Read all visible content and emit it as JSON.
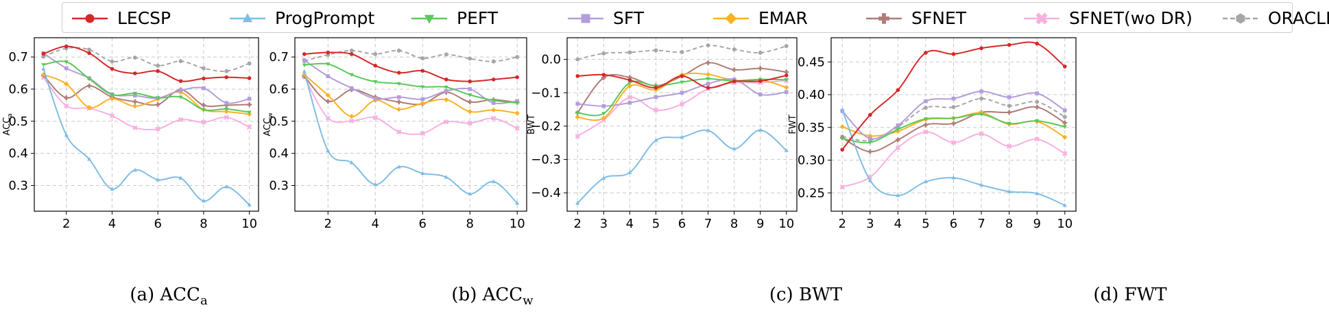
{
  "legend": {
    "items": [
      {
        "name": "LECSP",
        "color": "#d62728",
        "marker": "circle",
        "dash": false
      },
      {
        "name": "ProgPrompt",
        "color": "#7fbde5",
        "marker": "triangle-up",
        "dash": false
      },
      {
        "name": "PEFT",
        "color": "#5ac85a",
        "marker": "triangle-down",
        "dash": false
      },
      {
        "name": "SFT",
        "color": "#b39ddb",
        "marker": "square",
        "dash": false
      },
      {
        "name": "EMAR",
        "color": "#fbb124",
        "marker": "diamond",
        "dash": false
      },
      {
        "name": "SFNET",
        "color": "#b07c75",
        "marker": "plus",
        "dash": false
      },
      {
        "name": "SFNET(wo DR)",
        "color": "#f7b0e0",
        "marker": "x",
        "dash": false
      },
      {
        "name": "ORACLE",
        "color": "#a6a6a6",
        "marker": "hexagon",
        "dash": true
      }
    ]
  },
  "captions": [
    {
      "prefix": "(a) ACC",
      "sub": "a"
    },
    {
      "prefix": "(b) ACC",
      "sub": "w"
    },
    {
      "prefix": "(c) BWT",
      "sub": ""
    },
    {
      "prefix": "(d) FWT",
      "sub": ""
    }
  ],
  "chart_data": [
    {
      "type": "line",
      "title": "(a) ACC_a",
      "xlabel": "",
      "ylabel": "ACC_a",
      "x": [
        1,
        2,
        3,
        4,
        5,
        6,
        7,
        8,
        9,
        10
      ],
      "xticks": [
        2,
        4,
        6,
        8,
        10
      ],
      "xlim": [
        0.6,
        10.4
      ],
      "yticks": [
        0.3,
        0.4,
        0.5,
        0.6,
        0.7
      ],
      "ylim": [
        0.22,
        0.76
      ],
      "series": [
        {
          "name": "LECSP",
          "values": [
            0.71,
            0.733,
            0.712,
            0.663,
            0.649,
            0.656,
            0.625,
            0.633,
            0.637,
            0.634
          ]
        },
        {
          "name": "ProgPrompt",
          "values": [
            0.663,
            0.457,
            0.382,
            0.289,
            0.348,
            0.318,
            0.323,
            0.252,
            0.296,
            0.24
          ]
        },
        {
          "name": "PEFT",
          "values": [
            0.676,
            0.685,
            0.632,
            0.583,
            0.587,
            0.573,
            0.575,
            0.536,
            0.538,
            0.528
          ]
        },
        {
          "name": "SFT",
          "values": [
            0.712,
            0.665,
            0.634,
            0.584,
            0.58,
            0.572,
            0.596,
            0.603,
            0.557,
            0.57
          ]
        },
        {
          "name": "EMAR",
          "values": [
            0.645,
            0.616,
            0.543,
            0.57,
            0.547,
            0.569,
            0.59,
            0.536,
            0.53,
            0.522
          ]
        },
        {
          "name": "SFNET",
          "values": [
            0.643,
            0.573,
            0.61,
            0.575,
            0.561,
            0.552,
            0.598,
            0.55,
            0.55,
            0.552
          ]
        },
        {
          "name": "SFNET(wo DR)",
          "values": [
            0.636,
            0.548,
            0.54,
            0.517,
            0.48,
            0.476,
            0.505,
            0.497,
            0.512,
            0.482
          ]
        },
        {
          "name": "ORACLE",
          "values": [
            0.701,
            0.727,
            0.723,
            0.686,
            0.698,
            0.673,
            0.687,
            0.665,
            0.656,
            0.68
          ]
        }
      ]
    },
    {
      "type": "line",
      "title": "(b) ACC_w",
      "xlabel": "",
      "ylabel": "ACC_w",
      "x": [
        1,
        2,
        3,
        4,
        5,
        6,
        7,
        8,
        9,
        10
      ],
      "xticks": [
        2,
        4,
        6,
        8,
        10
      ],
      "xlim": [
        0.6,
        10.4
      ],
      "yticks": [
        0.3,
        0.4,
        0.5,
        0.6,
        0.7
      ],
      "ylim": [
        0.22,
        0.76
      ],
      "series": [
        {
          "name": "LECSP",
          "values": [
            0.709,
            0.714,
            0.709,
            0.673,
            0.651,
            0.657,
            0.63,
            0.624,
            0.63,
            0.637
          ]
        },
        {
          "name": "ProgPrompt",
          "values": [
            0.655,
            0.408,
            0.371,
            0.303,
            0.358,
            0.338,
            0.326,
            0.274,
            0.312,
            0.245
          ]
        },
        {
          "name": "PEFT",
          "values": [
            0.675,
            0.678,
            0.645,
            0.623,
            0.617,
            0.607,
            0.606,
            0.582,
            0.565,
            0.557
          ]
        },
        {
          "name": "SFT",
          "values": [
            0.69,
            0.64,
            0.603,
            0.57,
            0.575,
            0.569,
            0.594,
            0.6,
            0.557,
            0.563
          ]
        },
        {
          "name": "EMAR",
          "values": [
            0.645,
            0.581,
            0.515,
            0.565,
            0.537,
            0.556,
            0.567,
            0.53,
            0.535,
            0.525
          ]
        },
        {
          "name": "SFNET",
          "values": [
            0.64,
            0.562,
            0.598,
            0.575,
            0.56,
            0.554,
            0.59,
            0.56,
            0.567,
            0.558
          ]
        },
        {
          "name": "SFNET(wo DR)",
          "values": [
            0.638,
            0.51,
            0.501,
            0.511,
            0.467,
            0.462,
            0.498,
            0.494,
            0.509,
            0.478
          ]
        },
        {
          "name": "ORACLE",
          "values": [
            0.687,
            0.707,
            0.72,
            0.709,
            0.72,
            0.696,
            0.708,
            0.695,
            0.686,
            0.7
          ]
        }
      ]
    },
    {
      "type": "line",
      "title": "(c) BWT",
      "xlabel": "",
      "ylabel": "BWT",
      "x": [
        2,
        3,
        4,
        5,
        6,
        7,
        8,
        9,
        10
      ],
      "xticks": [
        2,
        3,
        4,
        5,
        6,
        7,
        8,
        9,
        10
      ],
      "xlim": [
        1.6,
        10.4
      ],
      "yticks": [
        -0.4,
        -0.3,
        -0.2,
        -0.1,
        0.0
      ],
      "ylim": [
        -0.455,
        0.065
      ],
      "series": [
        {
          "name": "LECSP",
          "values": [
            -0.05,
            -0.046,
            -0.062,
            -0.085,
            -0.05,
            -0.085,
            -0.066,
            -0.065,
            -0.048
          ]
        },
        {
          "name": "ProgPrompt",
          "values": [
            -0.431,
            -0.356,
            -0.339,
            -0.243,
            -0.233,
            -0.213,
            -0.268,
            -0.212,
            -0.273
          ]
        },
        {
          "name": "PEFT",
          "values": [
            -0.16,
            -0.162,
            -0.07,
            -0.08,
            -0.068,
            -0.058,
            -0.065,
            -0.06,
            -0.061
          ]
        },
        {
          "name": "SFT",
          "values": [
            -0.133,
            -0.14,
            -0.13,
            -0.113,
            -0.1,
            -0.073,
            -0.06,
            -0.105,
            -0.098
          ]
        },
        {
          "name": "EMAR",
          "values": [
            -0.173,
            -0.176,
            -0.08,
            -0.091,
            -0.046,
            -0.045,
            -0.063,
            -0.061,
            -0.084
          ]
        },
        {
          "name": "SFNET",
          "values": [
            -0.16,
            -0.055,
            -0.054,
            -0.079,
            -0.05,
            -0.01,
            -0.031,
            -0.027,
            -0.038
          ]
        },
        {
          "name": "SFNET(wo DR)",
          "values": [
            -0.23,
            -0.182,
            -0.114,
            -0.152,
            -0.134,
            -0.088,
            -0.07,
            -0.07,
            -0.063
          ]
        },
        {
          "name": "ORACLE",
          "values": [
            0.0,
            0.018,
            0.021,
            0.027,
            0.022,
            0.042,
            0.03,
            0.02,
            0.04
          ]
        }
      ]
    },
    {
      "type": "line",
      "title": "(d) FWT",
      "xlabel": "",
      "ylabel": "FWT",
      "x": [
        2,
        3,
        4,
        5,
        6,
        7,
        8,
        9,
        10
      ],
      "xticks": [
        2,
        3,
        4,
        5,
        6,
        7,
        8,
        9,
        10
      ],
      "xlim": [
        1.6,
        10.4
      ],
      "yticks": [
        0.25,
        0.3,
        0.35,
        0.4,
        0.45
      ],
      "ylim": [
        0.222,
        0.487
      ],
      "ytick_labels": [
        "0.25",
        "0.30",
        "0.35",
        "0.40",
        "0.45"
      ],
      "series": [
        {
          "name": "LECSP",
          "values": [
            0.316,
            0.369,
            0.407,
            0.464,
            0.462,
            0.471,
            0.476,
            0.478,
            0.443
          ]
        },
        {
          "name": "ProgPrompt",
          "values": [
            0.377,
            0.269,
            0.246,
            0.267,
            0.273,
            0.262,
            0.252,
            0.249,
            0.231
          ]
        },
        {
          "name": "PEFT",
          "values": [
            0.333,
            0.327,
            0.347,
            0.363,
            0.364,
            0.37,
            0.356,
            0.36,
            0.351
          ]
        },
        {
          "name": "SFT",
          "values": [
            0.375,
            0.333,
            0.353,
            0.39,
            0.394,
            0.405,
            0.396,
            0.402,
            0.376
          ]
        },
        {
          "name": "EMAR",
          "values": [
            0.351,
            0.337,
            0.344,
            0.362,
            0.364,
            0.372,
            0.355,
            0.359,
            0.335
          ]
        },
        {
          "name": "SFNET",
          "values": [
            0.334,
            0.313,
            0.331,
            0.354,
            0.356,
            0.373,
            0.373,
            0.381,
            0.357
          ]
        },
        {
          "name": "SFNET(wo DR)",
          "values": [
            0.259,
            0.274,
            0.319,
            0.343,
            0.327,
            0.34,
            0.321,
            0.332,
            0.31
          ]
        },
        {
          "name": "ORACLE",
          "values": [
            0.336,
            0.33,
            0.351,
            0.38,
            0.381,
            0.394,
            0.383,
            0.389,
            0.366
          ]
        }
      ]
    }
  ]
}
